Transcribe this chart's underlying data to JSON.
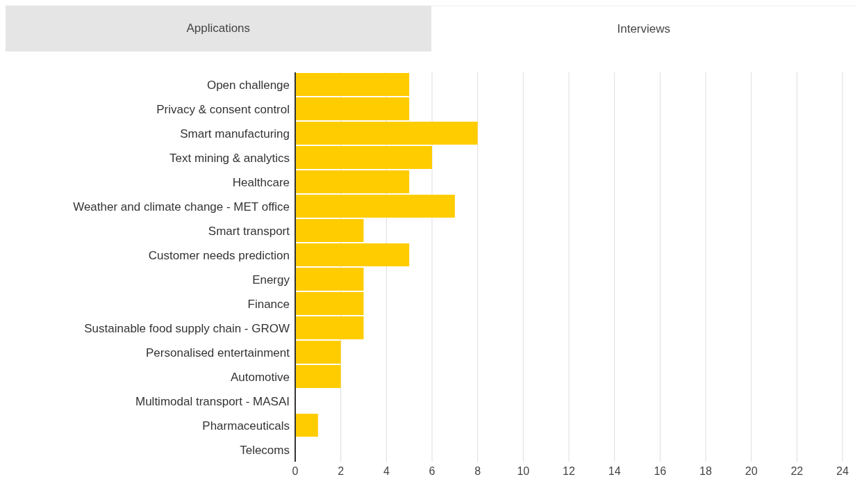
{
  "chart_data": {
    "type": "bar",
    "orientation": "horizontal",
    "annotations": [
      "Applications",
      "Interviews"
    ],
    "categories": [
      "Open challenge",
      "Privacy & consent control",
      "Smart manufacturing",
      "Text mining & analytics",
      "Healthcare",
      "Weather and climate change - MET office",
      "Smart transport",
      "Customer needs prediction",
      "Energy",
      "Finance",
      "Sustainable food supply chain - GROW",
      "Personalised entertainment",
      "Automotive",
      "Multimodal transport - MASAI",
      "Pharmaceuticals",
      "Telecoms"
    ],
    "values": [
      5,
      5,
      8,
      6,
      5,
      7,
      3,
      5,
      3,
      3,
      3,
      2,
      2,
      0,
      1,
      0
    ],
    "color": "#ffcc00",
    "xlim": [
      0,
      24
    ],
    "xticks": [
      0,
      2,
      4,
      6,
      8,
      10,
      12,
      14,
      16,
      18,
      20,
      22,
      24
    ],
    "grid": "x"
  }
}
